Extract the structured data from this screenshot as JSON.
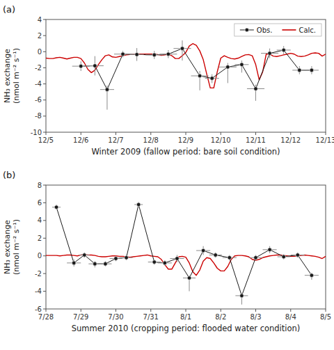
{
  "chart_data": [
    {
      "type": "line",
      "panel_label": "(a)",
      "x_label": "Winter 2009 (fallow period: bare soil condition)",
      "y_label": [
        "NH₃ exchange",
        "(nmol m⁻² s⁻¹)"
      ],
      "xlim": [
        0,
        8
      ],
      "xticks": [
        {
          "value": 0,
          "label": "12/5"
        },
        {
          "value": 1,
          "label": "12/6"
        },
        {
          "value": 2,
          "label": "12/7"
        },
        {
          "value": 3,
          "label": "12/8"
        },
        {
          "value": 4,
          "label": "12/9"
        },
        {
          "value": 5,
          "label": "12/10"
        },
        {
          "value": 6,
          "label": "12/11"
        },
        {
          "value": 7,
          "label": "12/12"
        },
        {
          "value": 8,
          "label": "12/13"
        }
      ],
      "ylim": [
        -10,
        4
      ],
      "yticks": [
        -10,
        -8,
        -6,
        -4,
        -2,
        0,
        2,
        4
      ],
      "grid": false,
      "legend": "upper right",
      "series": [
        {
          "name": "Obs.",
          "color": "#1a1a1a",
          "marker": "circle",
          "line_style": "solid",
          "x": [
            1.0,
            1.4,
            1.75,
            2.2,
            2.6,
            3.1,
            3.5,
            3.9,
            4.4,
            4.75,
            5.2,
            5.6,
            6.0,
            6.4,
            6.8,
            7.25,
            7.6
          ],
          "values": [
            -1.8,
            -1.75,
            -4.7,
            -0.3,
            -0.35,
            -0.4,
            -0.3,
            0.4,
            -3.0,
            -3.3,
            -1.9,
            -1.6,
            -4.6,
            -0.2,
            0.2,
            -2.3,
            -2.3
          ],
          "xerr": [
            0.25,
            0.25,
            0.2,
            0.25,
            0.2,
            0.25,
            0.25,
            0.25,
            0.25,
            0.2,
            0.25,
            0.2,
            0.25,
            0.25,
            0.2,
            0.2,
            0.2
          ],
          "yerr_lo": [
            0.6,
            1.2,
            2.5,
            0.4,
            0.8,
            0.5,
            0.5,
            1.5,
            1.8,
            0.6,
            2.0,
            1.0,
            1.5,
            0.6,
            0.5,
            0.5,
            0.5
          ],
          "yerr_hi": [
            0.6,
            1.2,
            0.5,
            0.4,
            0.8,
            0.5,
            0.5,
            1.0,
            0.6,
            0.5,
            0.5,
            0.5,
            0.5,
            0.6,
            0.5,
            0.5,
            0.5
          ]
        },
        {
          "name": "Calc.",
          "color": "#cc0000",
          "line_style": "solid",
          "x": [
            0.0,
            0.1,
            0.2,
            0.3,
            0.4,
            0.5,
            0.6,
            0.7,
            0.8,
            0.9,
            1.0,
            1.1,
            1.2,
            1.3,
            1.4,
            1.5,
            1.6,
            1.7,
            1.8,
            1.9,
            2.0,
            2.1,
            2.2,
            2.3,
            2.4,
            2.5,
            2.6,
            2.7,
            2.8,
            2.9,
            3.0,
            3.1,
            3.2,
            3.3,
            3.4,
            3.5,
            3.6,
            3.7,
            3.8,
            3.9,
            4.0,
            4.1,
            4.2,
            4.3,
            4.4,
            4.5,
            4.6,
            4.7,
            4.8,
            4.9,
            5.0,
            5.1,
            5.2,
            5.3,
            5.4,
            5.5,
            5.6,
            5.7,
            5.8,
            5.9,
            6.0,
            6.1,
            6.2,
            6.3,
            6.4,
            6.5,
            6.6,
            6.7,
            6.8,
            6.9,
            7.0,
            7.1,
            7.2,
            7.3,
            7.4,
            7.5,
            7.6,
            7.7,
            7.8,
            7.9,
            8.0
          ],
          "values": [
            -0.8,
            -0.85,
            -0.85,
            -0.75,
            -0.7,
            -0.8,
            -0.9,
            -0.8,
            -0.7,
            -0.7,
            -0.85,
            -1.4,
            -2.2,
            -2.6,
            -2.3,
            -1.6,
            -1.0,
            -0.5,
            -0.4,
            -0.65,
            -0.7,
            -0.6,
            -0.5,
            -0.4,
            -0.35,
            -0.35,
            -0.3,
            -0.3,
            -0.3,
            -0.3,
            -0.3,
            -0.3,
            -0.35,
            -0.45,
            -0.4,
            -0.3,
            -0.5,
            -0.85,
            -0.85,
            -0.5,
            -0.1,
            0.7,
            1.0,
            0.8,
            0.1,
            -1.0,
            -2.8,
            -4.5,
            -4.5,
            -2.5,
            -0.8,
            -0.5,
            -0.7,
            -0.85,
            -0.9,
            -0.8,
            -0.6,
            -0.4,
            -0.35,
            -0.5,
            -1.6,
            -3.5,
            -2.5,
            -0.3,
            -0.3,
            -0.55,
            -0.6,
            -0.5,
            -0.4,
            -0.3,
            -0.2,
            -0.3,
            -0.55,
            -0.6,
            -0.55,
            -0.4,
            -0.2,
            -0.15,
            -0.2,
            -0.55,
            -0.3
          ]
        }
      ]
    },
    {
      "type": "line",
      "panel_label": "(b)",
      "x_label": "Summer 2010 (cropping period: flooded water condition)",
      "y_label": [
        "NH₃ exchange",
        "(nmol m⁻² s⁻¹)"
      ],
      "xlim": [
        0,
        8
      ],
      "xticks": [
        {
          "value": 0,
          "label": "7/28"
        },
        {
          "value": 1,
          "label": "7/29"
        },
        {
          "value": 2,
          "label": "7/30"
        },
        {
          "value": 3,
          "label": "7/31"
        },
        {
          "value": 4,
          "label": "8/1"
        },
        {
          "value": 5,
          "label": "8/2"
        },
        {
          "value": 6,
          "label": "8/3"
        },
        {
          "value": 7,
          "label": "8/4"
        },
        {
          "value": 8,
          "label": "8/5"
        }
      ],
      "ylim": [
        -6,
        8
      ],
      "yticks": [
        -6,
        -4,
        -2,
        0,
        2,
        4,
        6,
        8
      ],
      "grid": false,
      "series": [
        {
          "color": "#1a1a1a",
          "marker": "circle",
          "line_style": "solid",
          "x": [
            0.3,
            0.8,
            1.1,
            1.4,
            1.7,
            2.0,
            2.3,
            2.65,
            3.1,
            3.4,
            3.75,
            4.1,
            4.5,
            4.85,
            5.25,
            5.6,
            6.0,
            6.4,
            6.8,
            7.2,
            7.6
          ],
          "values": [
            5.5,
            -0.8,
            0.1,
            -0.9,
            -0.9,
            -0.3,
            -0.2,
            5.8,
            -0.7,
            -0.8,
            -0.3,
            -2.5,
            0.6,
            0.1,
            -0.2,
            -4.5,
            -0.2,
            0.7,
            -0.1,
            0.1,
            -2.2
          ],
          "xerr": [
            0.12,
            0.2,
            0.15,
            0.18,
            0.18,
            0.18,
            0.18,
            0.12,
            0.18,
            0.2,
            0.2,
            0.18,
            0.2,
            0.18,
            0.2,
            0.18,
            0.2,
            0.2,
            0.18,
            0.2,
            0.2
          ],
          "yerr_lo": [
            0.3,
            0.4,
            0.3,
            0.4,
            0.3,
            0.3,
            0.3,
            0.3,
            0.3,
            0.3,
            0.4,
            1.5,
            0.5,
            0.3,
            0.3,
            1.0,
            0.3,
            0.4,
            0.3,
            0.3,
            0.5
          ],
          "yerr_hi": [
            0.3,
            0.4,
            0.3,
            0.3,
            0.3,
            0.3,
            0.3,
            0.3,
            0.3,
            0.3,
            0.4,
            0.3,
            0.5,
            0.3,
            0.3,
            0.3,
            0.3,
            0.4,
            0.3,
            0.3,
            0.3
          ]
        },
        {
          "color": "#cc0000",
          "line_style": "solid",
          "x": [
            0.0,
            0.1,
            0.2,
            0.3,
            0.4,
            0.5,
            0.6,
            0.7,
            0.8,
            0.9,
            1.0,
            1.1,
            1.2,
            1.3,
            1.4,
            1.5,
            1.6,
            1.7,
            1.8,
            1.9,
            2.0,
            2.1,
            2.2,
            2.3,
            2.4,
            2.5,
            2.6,
            2.7,
            2.8,
            2.9,
            3.0,
            3.1,
            3.2,
            3.3,
            3.4,
            3.5,
            3.6,
            3.7,
            3.8,
            3.9,
            4.0,
            4.1,
            4.2,
            4.3,
            4.4,
            4.5,
            4.6,
            4.7,
            4.8,
            4.9,
            5.0,
            5.1,
            5.2,
            5.3,
            5.4,
            5.5,
            5.6,
            5.7,
            5.8,
            5.9,
            6.0,
            6.1,
            6.2,
            6.3,
            6.4,
            6.5,
            6.6,
            6.7,
            6.8,
            6.9,
            7.0,
            7.1,
            7.2,
            7.3,
            7.4,
            7.5,
            7.6,
            7.7,
            7.8,
            7.9,
            8.0
          ],
          "values": [
            0.05,
            0.05,
            0.05,
            0.05,
            0.0,
            0.05,
            0.1,
            0.1,
            0.05,
            0.0,
            0.1,
            0.15,
            0.1,
            0.1,
            0.05,
            -0.05,
            -0.1,
            -0.1,
            -0.05,
            0.0,
            0.0,
            -0.05,
            -0.05,
            -0.1,
            -0.15,
            -0.1,
            -0.05,
            0.0,
            0.05,
            0.1,
            0.0,
            -0.05,
            -0.1,
            -0.4,
            -1.0,
            -1.5,
            -1.5,
            -0.8,
            -0.1,
            -0.05,
            -0.15,
            -0.8,
            -1.8,
            -2.2,
            -1.6,
            -0.6,
            -0.2,
            -0.3,
            -0.8,
            -1.4,
            -1.7,
            -1.7,
            -1.2,
            -0.4,
            -0.0,
            0.05,
            0.05,
            0.0,
            -0.1,
            -0.4,
            -0.5,
            -0.4,
            -0.2,
            -0.1,
            0.0,
            0.05,
            0.1,
            0.1,
            0.05,
            0.0,
            -0.05,
            -0.05,
            0.0,
            0.05,
            0.1,
            0.05,
            0.0,
            -0.05,
            -0.15,
            -0.3,
            -0.05
          ]
        }
      ]
    }
  ]
}
